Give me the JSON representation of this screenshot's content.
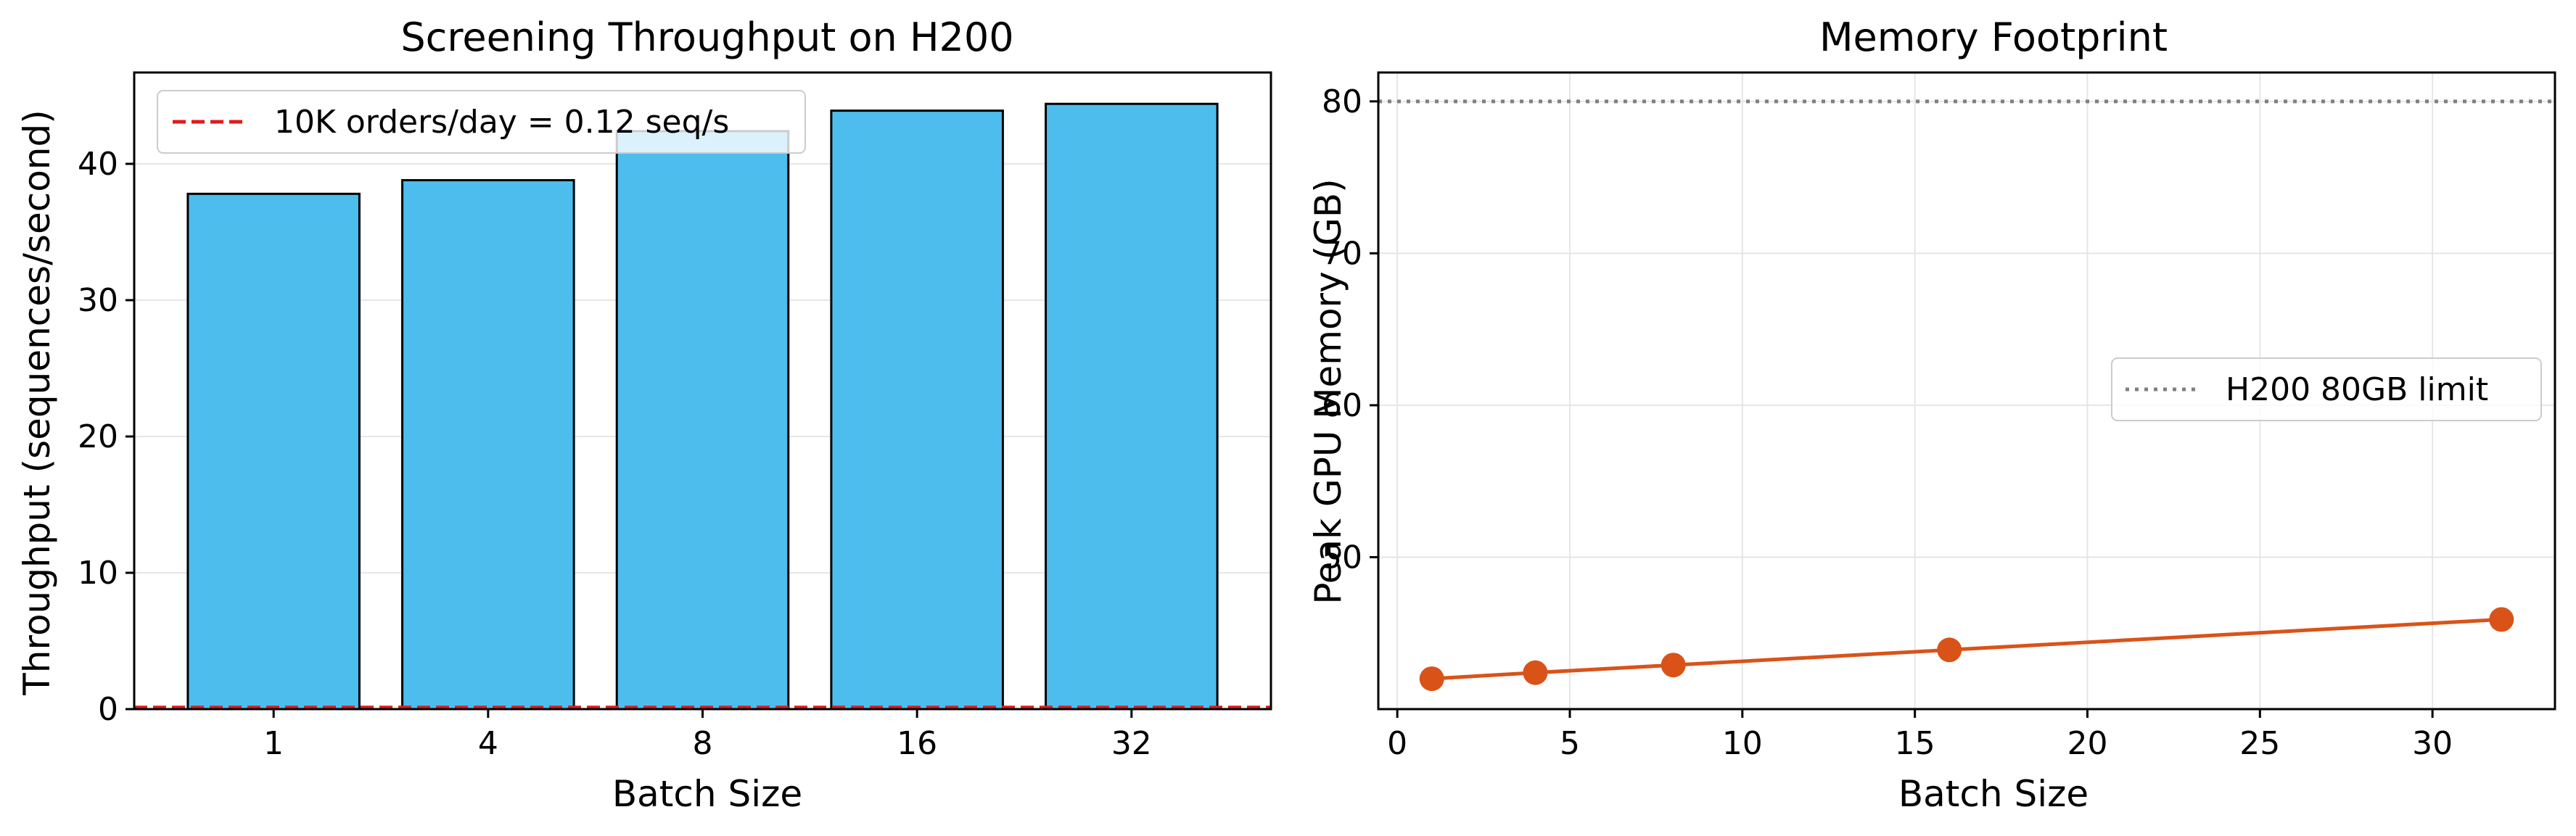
{
  "chart_data": [
    {
      "type": "bar",
      "title": "Screening Throughput on H200",
      "xlabel": "Batch Size",
      "ylabel": "Throughput (sequences/second)",
      "categories": [
        "1",
        "4",
        "8",
        "16",
        "32"
      ],
      "values": [
        37.8,
        38.8,
        42.4,
        43.9,
        44.4
      ],
      "ylim": [
        0,
        46.7
      ],
      "yticks": [
        0,
        10,
        20,
        30,
        40
      ],
      "grid": true,
      "legend": "upper-left",
      "bar_color": "#4dbded",
      "reference_line": {
        "label": "10K orders/day = 0.12 seq/s",
        "value": 0.12,
        "color": "#e41a1c",
        "style": "dashed"
      }
    },
    {
      "type": "line",
      "title": "Memory Footprint",
      "xlabel": "Batch Size",
      "ylabel": "Peak GPU Memory (GB)",
      "x": [
        1,
        4,
        8,
        16,
        32
      ],
      "y": [
        42.0,
        42.4,
        42.9,
        43.9,
        45.9
      ],
      "xlim": [
        -0.55,
        33.55
      ],
      "ylim": [
        40.0,
        81.9
      ],
      "xticks": [
        0,
        5,
        10,
        15,
        20,
        25,
        30
      ],
      "yticks": [
        50,
        60,
        70,
        80
      ],
      "grid": true,
      "legend": "center-right",
      "line_color": "#d95319",
      "reference_line": {
        "label": "H200 80GB limit",
        "value": 80,
        "color": "#808080",
        "style": "dotted"
      }
    }
  ]
}
